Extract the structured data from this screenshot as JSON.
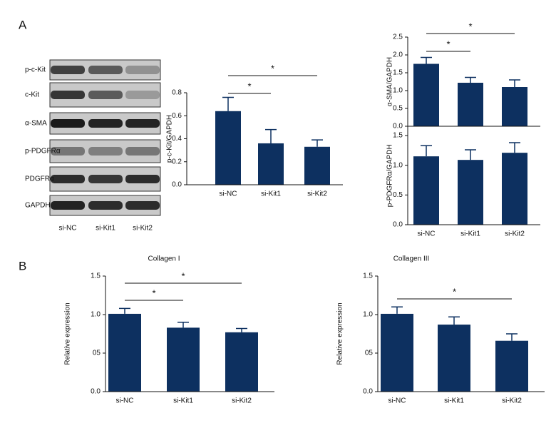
{
  "panels": [
    "A",
    "B"
  ],
  "blot": {
    "rows": [
      "p-c-Kit",
      "c-Kit",
      "α-SMA",
      "p-PDGFRα",
      "PDGFRα",
      "GAPDH"
    ],
    "lanes": [
      "si-NC",
      "si-Kit1",
      "si-Kit2"
    ]
  },
  "chart_data": [
    {
      "type": "bar",
      "y_label": "p-c-Kit/GAPDH",
      "categories": [
        "si-NC",
        "si-Kit1",
        "si-Kit2"
      ],
      "values": [
        0.64,
        0.36,
        0.33
      ],
      "errors": [
        0.12,
        0.12,
        0.06
      ],
      "color": "#0d3060",
      "ylim": [
        0,
        0.8
      ],
      "yticks": [
        {
          "value": 0,
          "label": "0.0"
        },
        0.2,
        0.4,
        0.6,
        0.8
      ],
      "significance": [
        {
          "pair": [
            0,
            1
          ],
          "label": "*"
        },
        {
          "pair": [
            0,
            2
          ],
          "label": "*"
        }
      ]
    },
    {
      "type": "bar",
      "y_label": "α-SMA/GAPDH",
      "values": [
        1.75,
        1.22,
        1.1
      ],
      "errors": [
        0.18,
        0.15,
        0.2
      ],
      "color": "#0d3060",
      "ylim": [
        0,
        2.5
      ],
      "yticks": [
        {
          "value": 0,
          "label": "0.0"
        },
        0.5,
        {
          "value": 1,
          "label": "1.0"
        },
        1.5,
        {
          "value": 2,
          "label": "2.0"
        },
        2.5
      ],
      "significance": [
        {
          "pair": [
            0,
            1
          ],
          "label": "*"
        },
        {
          "pair": [
            0,
            2
          ],
          "label": "*"
        }
      ]
    },
    {
      "type": "bar",
      "y_label": "p-PDGFRα/GAPDH",
      "categories": [
        "si-NC",
        "si-Kit1",
        "si-Kit2"
      ],
      "values": [
        1.15,
        1.09,
        1.21
      ],
      "errors": [
        0.18,
        0.17,
        0.17
      ],
      "color": "#0d3060",
      "ylim": [
        0,
        1.65
      ],
      "yticks": [
        {
          "value": 0,
          "label": "0.0"
        },
        0.5,
        {
          "value": 1,
          "label": "1.0"
        },
        1.5
      ]
    },
    {
      "type": "bar",
      "title": "Collagen I",
      "y_label": "Relative expression",
      "categories": [
        "si-NC",
        "si-Kit1",
        "si-Kit2"
      ],
      "values": [
        1.01,
        0.83,
        0.77
      ],
      "errors": [
        0.07,
        0.07,
        0.05
      ],
      "color": "#0d3060",
      "ylim": [
        0,
        1.5
      ],
      "yticks": [
        {
          "value": 0,
          "label": "0.0"
        },
        {
          "value": 0.5,
          "label": "05"
        },
        {
          "value": 1,
          "label": "1.0"
        },
        1.5
      ],
      "significance": [
        {
          "pair": [
            0,
            1
          ],
          "label": "*"
        },
        {
          "pair": [
            0,
            2
          ],
          "label": "*"
        }
      ]
    },
    {
      "type": "bar",
      "title": "Collagen III",
      "y_label": "Relative expression",
      "categories": [
        "si-NC",
        "si-Kit1",
        "si-Kit2"
      ],
      "values": [
        1.01,
        0.87,
        0.66
      ],
      "errors": [
        0.09,
        0.1,
        0.09
      ],
      "color": "#0d3060",
      "ylim": [
        0,
        1.5
      ],
      "yticks": [
        {
          "value": 0,
          "label": "0.0"
        },
        {
          "value": 0.5,
          "label": "05"
        },
        {
          "value": 1,
          "label": "1.0"
        },
        1.5
      ],
      "significance": [
        {
          "pair": [
            0,
            2
          ],
          "label": "*"
        }
      ]
    }
  ]
}
